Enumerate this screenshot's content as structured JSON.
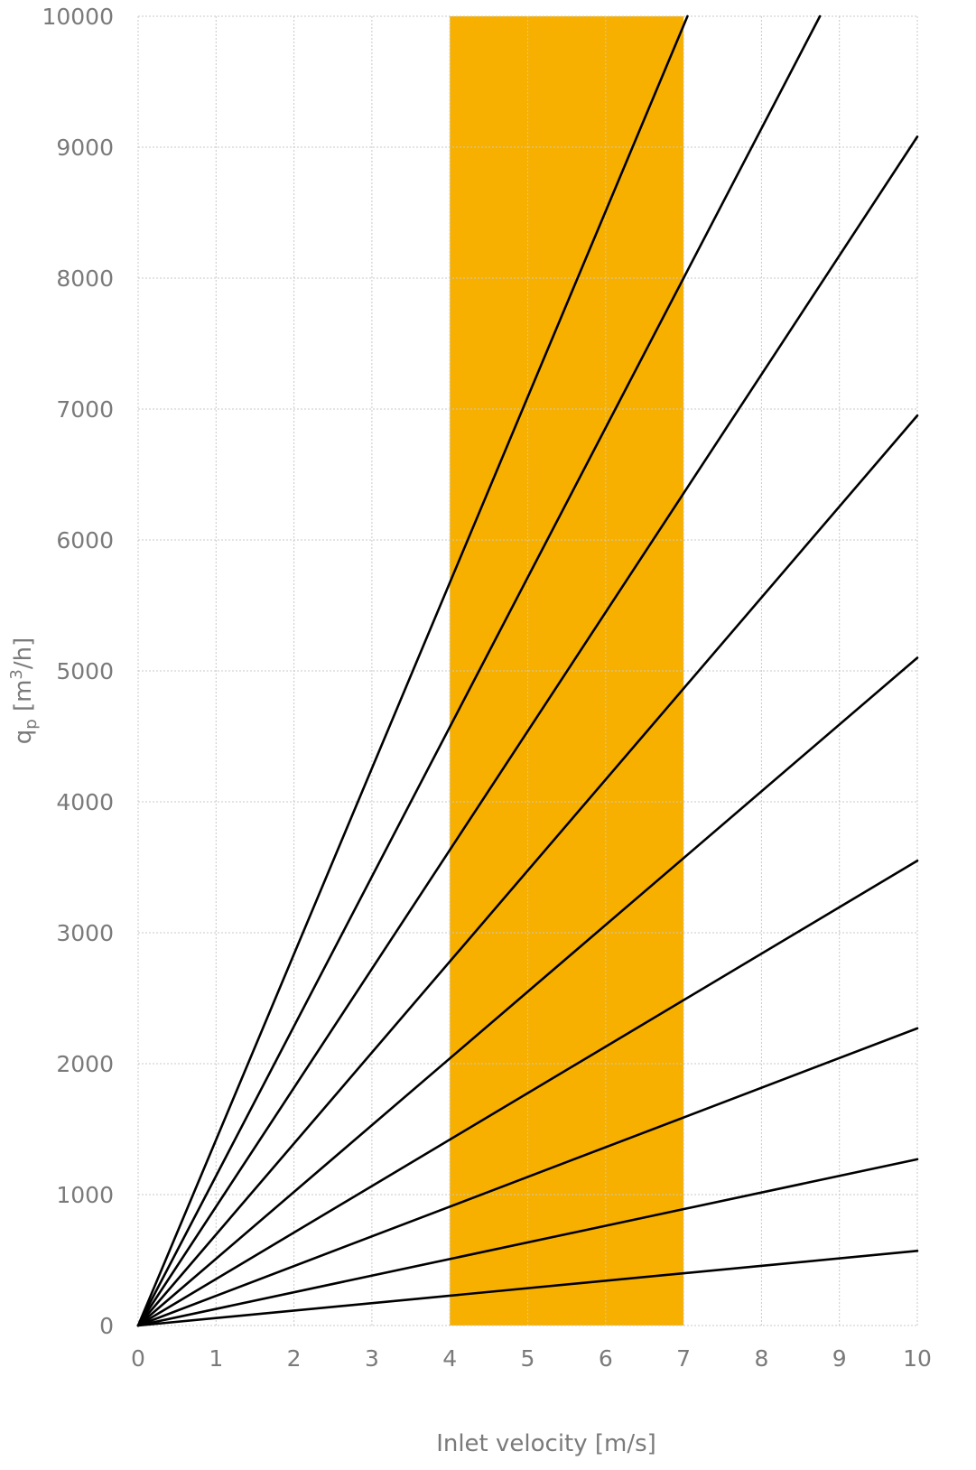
{
  "chart_data": {
    "type": "line",
    "xlabel": "Inlet velocity [m/s]",
    "ylabel": {
      "main": "q",
      "sub": "p",
      "unit_pre": " [m",
      "sup": "3",
      "unit_post": "/h]"
    },
    "xlim": [
      0,
      10
    ],
    "ylim": [
      0,
      10000
    ],
    "x_ticks": [
      "0",
      "1",
      "2",
      "3",
      "4",
      "5",
      "6",
      "7",
      "8",
      "9",
      "10"
    ],
    "y_ticks": [
      "0",
      "1000",
      "2000",
      "3000",
      "4000",
      "5000",
      "6000",
      "7000",
      "8000",
      "9000",
      "10000"
    ],
    "grid": true,
    "highlight_band": {
      "x_from": 4,
      "x_to": 7,
      "color": "#F7B000"
    },
    "line_color": "#000000",
    "series": [
      {
        "x": [
          0,
          10
        ],
        "y": [
          0,
          570
        ]
      },
      {
        "x": [
          0,
          10
        ],
        "y": [
          0,
          1270
        ]
      },
      {
        "x": [
          0,
          10
        ],
        "y": [
          0,
          2270
        ]
      },
      {
        "x": [
          0,
          10
        ],
        "y": [
          0,
          3550
        ]
      },
      {
        "x": [
          0,
          10
        ],
        "y": [
          0,
          5100
        ]
      },
      {
        "x": [
          0,
          10
        ],
        "y": [
          0,
          6950
        ]
      },
      {
        "x": [
          0,
          10
        ],
        "y": [
          0,
          9080
        ]
      },
      {
        "x": [
          0,
          8.75
        ],
        "y": [
          0,
          10000
        ]
      },
      {
        "x": [
          0,
          7.05
        ],
        "y": [
          0,
          10000
        ]
      }
    ]
  }
}
